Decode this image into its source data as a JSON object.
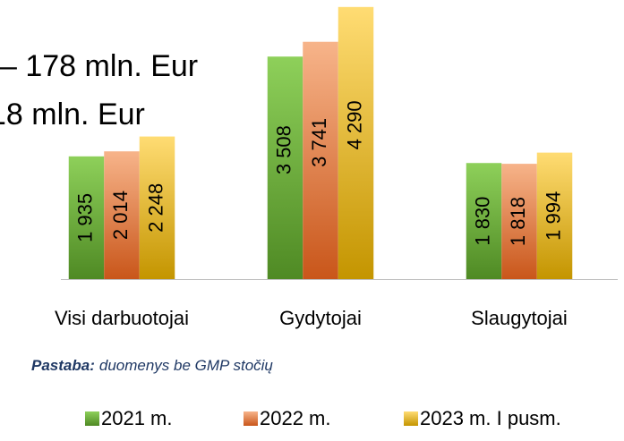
{
  "chart_data": {
    "type": "bar",
    "overlay_texts": [
      "– 178 mln. Eur",
      "18 mln. Eur"
    ],
    "categories": [
      "Visi darbuotojai",
      "Gydytojai",
      "Slaugytojai"
    ],
    "series": [
      {
        "name": "2021 m.",
        "color": "#6fb43f",
        "values": [
          1935,
          3508,
          1830
        ],
        "value_labels": [
          "1 935",
          "3 508",
          "1 830"
        ]
      },
      {
        "name": "2022 m.",
        "color": "#e8803f",
        "values": [
          2014,
          3741,
          1818
        ],
        "value_labels": [
          "2 014",
          "3 741",
          "1 818"
        ]
      },
      {
        "name": "2023 m. I pusm.",
        "color": "#fbc02d",
        "values": [
          2248,
          4290,
          1994
        ],
        "value_labels": [
          "2 248",
          "4 290",
          "1 994"
        ]
      }
    ],
    "ylim": [
      0,
      4400
    ],
    "note": {
      "label": "Pastaba:",
      "text": "duomenys be GMP stočių"
    }
  }
}
